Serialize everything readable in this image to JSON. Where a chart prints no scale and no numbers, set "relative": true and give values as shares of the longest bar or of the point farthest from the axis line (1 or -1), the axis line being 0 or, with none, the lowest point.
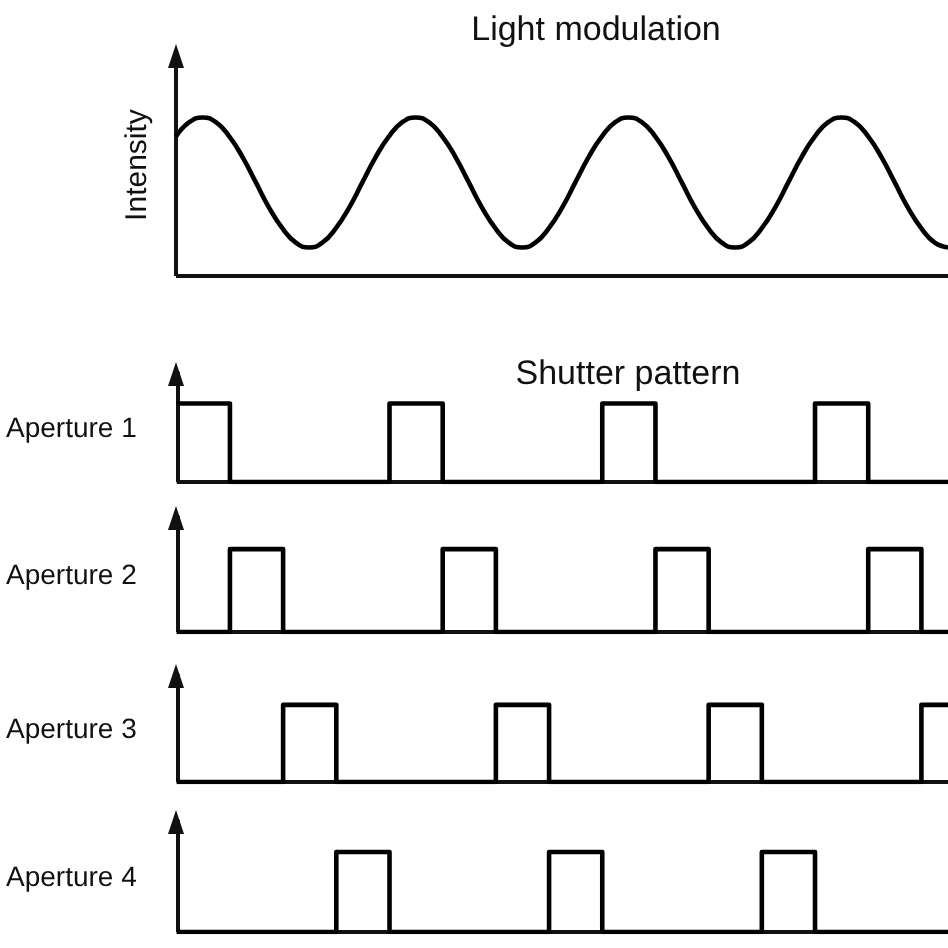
{
  "chart_data": [
    {
      "type": "line",
      "title": "Light modulation",
      "ylabel": "Intensity",
      "relative": true,
      "tick_labels": false,
      "marker": "none",
      "categories": [
        null,
        null,
        null,
        null,
        null,
        null,
        null,
        null,
        null,
        null,
        null,
        null,
        null,
        null,
        null,
        null,
        null,
        null,
        null,
        null,
        null,
        null,
        null,
        null,
        null,
        null,
        null,
        null,
        null,
        null,
        null,
        null,
        null,
        null,
        null,
        null,
        null,
        null,
        null,
        null,
        null,
        null,
        null,
        null,
        null,
        null,
        null,
        null,
        null,
        null,
        null,
        null,
        null,
        null,
        null,
        null,
        null,
        null,
        null
      ],
      "series": [
        {
          "color": "#000000",
          "values": [
            0.88,
            0.97,
            1,
            0.97,
            0.88,
            0.75,
            0.59,
            0.43,
            0.3,
            0.21,
            0.18,
            0.21,
            0.3,
            0.43,
            0.59,
            0.75,
            0.88,
            0.97,
            1,
            0.97,
            0.88,
            0.75,
            0.59,
            0.43,
            0.3,
            0.21,
            0.18,
            0.21,
            0.3,
            0.43,
            0.59,
            0.75,
            0.88,
            0.97,
            1,
            0.97,
            0.88,
            0.75,
            0.59,
            0.43,
            0.3,
            0.21,
            0.18,
            0.21,
            0.3,
            0.43,
            0.59,
            0.75,
            0.88,
            0.97,
            1,
            0.97,
            0.88,
            0.75,
            0.59,
            0.43,
            0.3,
            0.21,
            0.18
          ]
        }
      ]
    },
    {
      "type": "step",
      "title": "Shutter pattern",
      "ylabel": "Aperture 1",
      "relative": true,
      "tick_labels": false,
      "marker": "none",
      "categories": [
        null,
        null,
        null,
        null,
        null,
        null,
        null,
        null,
        null,
        null,
        null,
        null,
        null,
        null,
        null,
        null,
        null,
        null,
        null,
        null,
        null,
        null,
        null,
        null,
        null,
        null,
        null,
        null,
        null,
        null
      ],
      "series": [
        {
          "color": "#000000",
          "values": [
            1,
            1,
            0,
            0,
            0,
            0,
            0,
            0,
            1,
            1,
            0,
            0,
            0,
            0,
            0,
            0,
            1,
            1,
            0,
            0,
            0,
            0,
            0,
            0,
            1,
            1,
            0,
            0,
            0,
            0
          ]
        }
      ]
    },
    {
      "type": "step",
      "ylabel": "Aperture 2",
      "relative": true,
      "tick_labels": false,
      "marker": "none",
      "categories": [
        null,
        null,
        null,
        null,
        null,
        null,
        null,
        null,
        null,
        null,
        null,
        null,
        null,
        null,
        null,
        null,
        null,
        null,
        null,
        null,
        null,
        null,
        null,
        null,
        null,
        null,
        null,
        null,
        null,
        null
      ],
      "series": [
        {
          "color": "#000000",
          "values": [
            0,
            0,
            1,
            1,
            0,
            0,
            0,
            0,
            0,
            0,
            1,
            1,
            0,
            0,
            0,
            0,
            0,
            0,
            1,
            1,
            0,
            0,
            0,
            0,
            0,
            0,
            1,
            1,
            0,
            0
          ]
        }
      ]
    },
    {
      "type": "step",
      "ylabel": "Aperture 3",
      "relative": true,
      "tick_labels": false,
      "marker": "none",
      "categories": [
        null,
        null,
        null,
        null,
        null,
        null,
        null,
        null,
        null,
        null,
        null,
        null,
        null,
        null,
        null,
        null,
        null,
        null,
        null,
        null,
        null,
        null,
        null,
        null,
        null,
        null,
        null,
        null,
        null,
        null
      ],
      "series": [
        {
          "color": "#000000",
          "values": [
            0,
            0,
            0,
            0,
            1,
            1,
            0,
            0,
            0,
            0,
            0,
            0,
            1,
            1,
            0,
            0,
            0,
            0,
            0,
            0,
            1,
            1,
            0,
            0,
            0,
            0,
            0,
            0,
            1,
            1
          ]
        }
      ]
    },
    {
      "type": "step",
      "ylabel": "Aperture 4",
      "relative": true,
      "tick_labels": false,
      "marker": "none",
      "categories": [
        null,
        null,
        null,
        null,
        null,
        null,
        null,
        null,
        null,
        null,
        null,
        null,
        null,
        null,
        null,
        null,
        null,
        null,
        null,
        null,
        null,
        null,
        null,
        null,
        null,
        null,
        null,
        null,
        null,
        null
      ],
      "series": [
        {
          "color": "#000000",
          "values": [
            0,
            0,
            0,
            0,
            0,
            0,
            1,
            1,
            0,
            0,
            0,
            0,
            0,
            0,
            1,
            1,
            0,
            0,
            0,
            0,
            0,
            0,
            1,
            1,
            0,
            0,
            0,
            0,
            0,
            0
          ]
        }
      ]
    }
  ]
}
